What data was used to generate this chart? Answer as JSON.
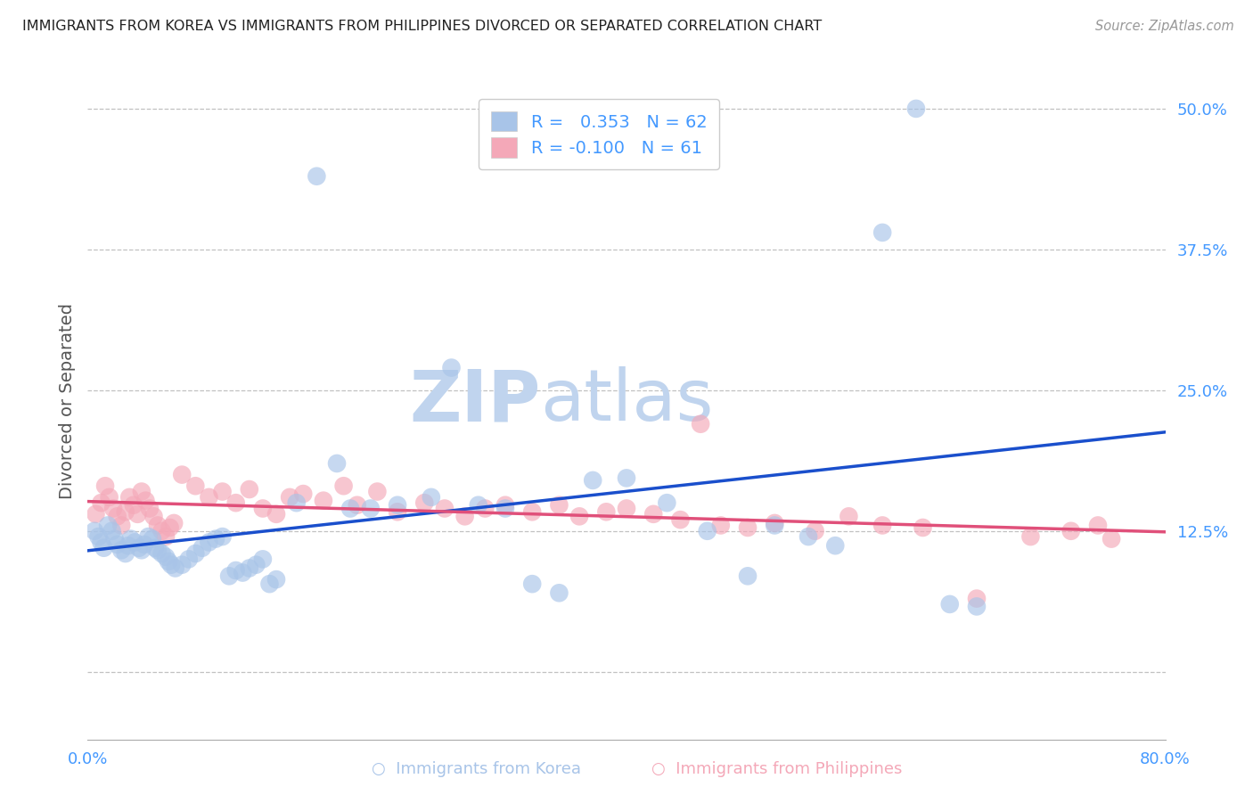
{
  "title": "IMMIGRANTS FROM KOREA VS IMMIGRANTS FROM PHILIPPINES DIVORCED OR SEPARATED CORRELATION CHART",
  "source": "Source: ZipAtlas.com",
  "ylabel": "Divorced or Separated",
  "korea_R": 0.353,
  "korea_N": 62,
  "phil_R": -0.1,
  "phil_N": 61,
  "korea_color": "#a8c4e8",
  "phil_color": "#f4a8b8",
  "korea_line_color": "#1a4fcc",
  "phil_line_color": "#e0507a",
  "watermark_color": "#c8d8ec",
  "background_color": "#ffffff",
  "grid_color": "#bbbbbb",
  "title_color": "#222222",
  "axis_label_color": "#555555",
  "tick_color": "#4499ff",
  "xlim": [
    0.0,
    0.8
  ],
  "ylim": [
    -0.06,
    0.54
  ],
  "ytick_vals": [
    0.0,
    0.125,
    0.25,
    0.375,
    0.5
  ],
  "ytick_labels": [
    "",
    "12.5%",
    "25.0%",
    "37.5%",
    "50.0%"
  ]
}
